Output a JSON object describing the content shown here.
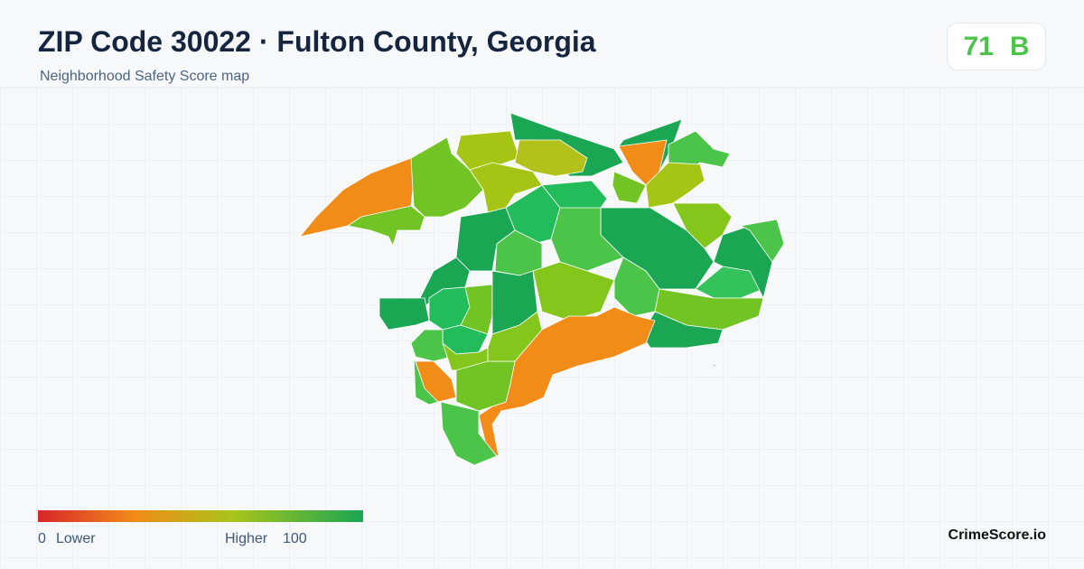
{
  "header": {
    "title": "ZIP Code 30022 · Fulton County, Georgia",
    "subtitle": "Neighborhood Safety Score map"
  },
  "score": {
    "value": "71",
    "grade": "B"
  },
  "legend": {
    "min": "0",
    "min_label": "Lower",
    "max_label": "Higher",
    "max": "100"
  },
  "brand": "CrimeScore.io"
}
